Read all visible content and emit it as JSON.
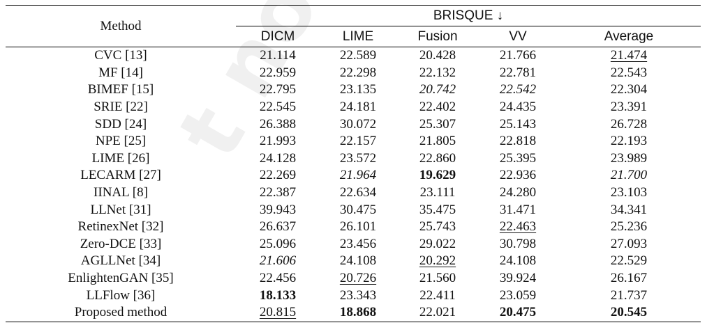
{
  "header": {
    "method": "Method",
    "group": "BRISQUE ↓",
    "columns": [
      "DICM",
      "LIME",
      "Fusion",
      "VV",
      "Average"
    ]
  },
  "rows": [
    {
      "method": "CVC [13]",
      "values": [
        "21.114",
        "22.589",
        "20.428",
        "21.766",
        "21.474"
      ],
      "styles": [
        "",
        "",
        "",
        "",
        "u"
      ]
    },
    {
      "method": "MF [14]",
      "values": [
        "22.959",
        "22.298",
        "22.132",
        "22.781",
        "22.543"
      ],
      "styles": [
        "",
        "",
        "",
        "",
        ""
      ]
    },
    {
      "method": "BIMEF [15]",
      "values": [
        "22.795",
        "23.135",
        "20.742",
        "22.542",
        "22.304"
      ],
      "styles": [
        "",
        "",
        "i",
        "i",
        ""
      ]
    },
    {
      "method": "SRIE [22]",
      "values": [
        "22.545",
        "24.181",
        "22.402",
        "24.435",
        "23.391"
      ],
      "styles": [
        "",
        "",
        "",
        "",
        ""
      ]
    },
    {
      "method": "SDD [24]",
      "values": [
        "26.388",
        "30.072",
        "25.307",
        "25.143",
        "26.728"
      ],
      "styles": [
        "",
        "",
        "",
        "",
        ""
      ]
    },
    {
      "method": "NPE [25]",
      "values": [
        "21.993",
        "22.157",
        "21.805",
        "22.818",
        "22.193"
      ],
      "styles": [
        "",
        "",
        "",
        "",
        ""
      ]
    },
    {
      "method": "LIME [26]",
      "values": [
        "24.128",
        "23.572",
        "22.860",
        "25.395",
        "23.989"
      ],
      "styles": [
        "",
        "",
        "",
        "",
        ""
      ]
    },
    {
      "method": "LECARM [27]",
      "values": [
        "22.269",
        "21.964",
        "19.629",
        "22.936",
        "21.700"
      ],
      "styles": [
        "",
        "i",
        "b",
        "",
        "i"
      ]
    },
    {
      "method": "IINAL [8]",
      "values": [
        "22.387",
        "22.634",
        "23.111",
        "24.280",
        "23.103"
      ],
      "styles": [
        "",
        "",
        "",
        "",
        ""
      ]
    },
    {
      "method": "LLNet [31]",
      "values": [
        "39.943",
        "30.475",
        "35.475",
        "31.471",
        "34.341"
      ],
      "styles": [
        "",
        "",
        "",
        "",
        ""
      ]
    },
    {
      "method": "RetinexNet [32]",
      "values": [
        "26.637",
        "26.101",
        "25.743",
        "22.463",
        "25.236"
      ],
      "styles": [
        "",
        "",
        "",
        "u",
        ""
      ]
    },
    {
      "method": "Zero-DCE [33]",
      "values": [
        "25.096",
        "23.456",
        "29.022",
        "30.798",
        "27.093"
      ],
      "styles": [
        "",
        "",
        "",
        "",
        ""
      ]
    },
    {
      "method": "AGLLNet [34]",
      "values": [
        "21.606",
        "24.108",
        "20.292",
        "24.108",
        "22.529"
      ],
      "styles": [
        "i",
        "",
        "u",
        "",
        ""
      ]
    },
    {
      "method": "EnlightenGAN [35]",
      "values": [
        "22.456",
        "20.726",
        "21.560",
        "39.924",
        "26.167"
      ],
      "styles": [
        "",
        "u",
        "",
        "",
        ""
      ]
    },
    {
      "method": "LLFlow [36]",
      "values": [
        "18.133",
        "23.343",
        "22.411",
        "23.059",
        "21.737"
      ],
      "styles": [
        "b",
        "",
        "",
        "",
        ""
      ]
    },
    {
      "method": "Proposed method",
      "values": [
        "20.815",
        "18.868",
        "22.021",
        "20.475",
        "20.545"
      ],
      "styles": [
        "u",
        "b",
        "",
        "b",
        "b"
      ]
    }
  ]
}
